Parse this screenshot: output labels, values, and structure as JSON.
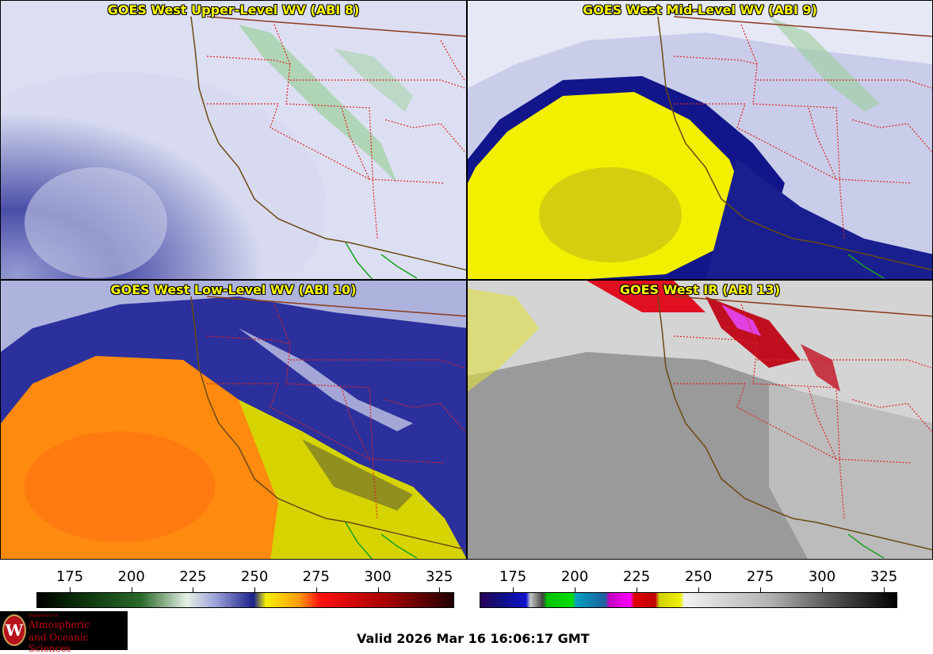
{
  "panels": [
    {
      "title": "GOES West Upper-Level WV (ABI 8)",
      "palette": "wv",
      "base": "#c8cde6",
      "feature": "#2a2f9a",
      "accent": "#7fbf7f"
    },
    {
      "title": "GOES West Mid-Level WV (ABI 9)",
      "palette": "wv",
      "base": "#b8bfe4",
      "feature": "#f5f000",
      "accent": "#1a1f8a"
    },
    {
      "title": "GOES West Low-Level WV (ABI 10)",
      "palette": "wv",
      "base": "#3a3fa8",
      "feature": "#ff8a10",
      "accent": "#e8e800"
    },
    {
      "title": "GOES West IR (ABI 13)",
      "palette": "ir",
      "base": "#9a9a9a",
      "feature": "#d8d8d8",
      "accent": "#d01020"
    }
  ],
  "colorbars": [
    {
      "name": "wv-colorbar",
      "ticks": [
        "175",
        "200",
        "225",
        "250",
        "275",
        "300",
        "325"
      ]
    },
    {
      "name": "ir-colorbar",
      "ticks": [
        "175",
        "200",
        "225",
        "250",
        "275",
        "300",
        "325"
      ]
    }
  ],
  "valid_text": "Valid 2026 Mar 16 16:06:17 GMT",
  "logo": {
    "dept": "Department of",
    "line1": "Atmospheric",
    "line2": "and Oceanic Sciences",
    "seal": "W"
  },
  "colors": {
    "title_text": "#ffff00",
    "state_borders": "#e02020",
    "coastline": "#6b4a12",
    "mexico_border": "#1aa020"
  }
}
